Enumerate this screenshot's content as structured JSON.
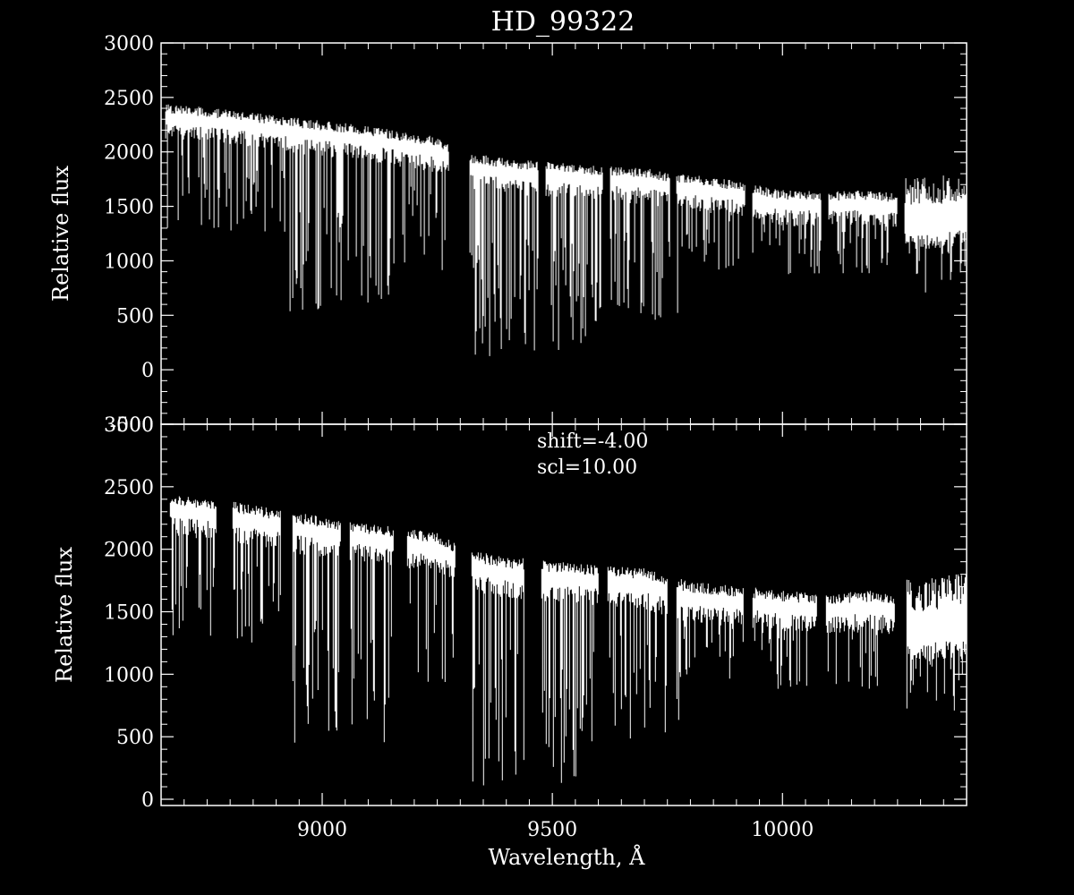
{
  "title": "HD_99322",
  "colors": {
    "background": "#000000",
    "foreground": "#ffffff"
  },
  "chart_data": [
    {
      "type": "line",
      "panel": "top",
      "title": "HD_99322",
      "xlabel": "",
      "ylabel": "Relative flux",
      "xlim": [
        8650,
        10400
      ],
      "ylim": [
        -500,
        3000
      ],
      "yticks": [
        "-500",
        "0",
        "500",
        "1000",
        "1500",
        "2000",
        "2500",
        "3000"
      ],
      "xticks": [],
      "annotations": [],
      "continuum": {
        "x": [
          8660,
          8800,
          8950,
          9100,
          9250,
          9320,
          9400,
          9550,
          9700,
          9800,
          9900,
          10000,
          10100,
          10200,
          10300,
          10400
        ],
        "y": [
          2350,
          2300,
          2220,
          2150,
          2050,
          1900,
          1850,
          1800,
          1760,
          1700,
          1650,
          1560,
          1550,
          1560,
          1500,
          1550
        ]
      },
      "gaps": [
        [
          9275,
          9320
        ],
        [
          9470,
          9485
        ],
        [
          9610,
          9625
        ],
        [
          9755,
          9770
        ],
        [
          9920,
          9935
        ],
        [
          10085,
          10100
        ],
        [
          10250,
          10265
        ]
      ]
    },
    {
      "type": "line",
      "panel": "bottom",
      "xlabel": "Wavelength, Å",
      "ylabel": "Relative flux",
      "xlim": [
        8650,
        10400
      ],
      "ylim": [
        -50,
        3000
      ],
      "yticks": [
        "0",
        "500",
        "1000",
        "1500",
        "2000",
        "2500",
        "3000"
      ],
      "xticks": [
        "9000",
        "9500",
        "10000"
      ],
      "annotations": [
        "shift=-4.00",
        "scl=10.00"
      ],
      "continuum": {
        "x": [
          8670,
          8800,
          8950,
          9100,
          9250,
          9320,
          9400,
          9550,
          9700,
          9800,
          9900,
          10000,
          10100,
          10200,
          10300,
          10400
        ],
        "y": [
          2350,
          2300,
          2200,
          2120,
          2050,
          1900,
          1850,
          1800,
          1760,
          1650,
          1620,
          1580,
          1560,
          1580,
          1500,
          1550
        ]
      },
      "gaps": [
        [
          8770,
          8805
        ],
        [
          8910,
          8935
        ],
        [
          9040,
          9060
        ],
        [
          9155,
          9185
        ],
        [
          9290,
          9325
        ],
        [
          9440,
          9475
        ],
        [
          9600,
          9620
        ],
        [
          9750,
          9770
        ],
        [
          9915,
          9935
        ],
        [
          10075,
          10095
        ],
        [
          10245,
          10270
        ]
      ]
    }
  ]
}
